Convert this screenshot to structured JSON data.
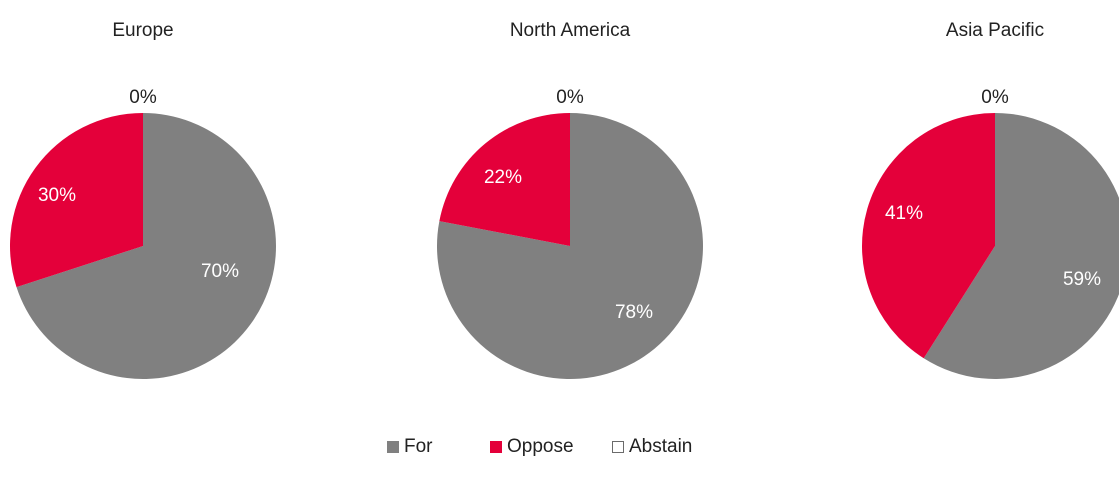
{
  "chart_data": [
    {
      "type": "pie",
      "title": "Europe",
      "categories": [
        "For",
        "Oppose",
        "Abstain"
      ],
      "values": [
        70,
        30,
        0
      ],
      "labels": [
        "70%",
        "30%",
        "0%"
      ]
    },
    {
      "type": "pie",
      "title": "North America",
      "categories": [
        "For",
        "Oppose",
        "Abstain"
      ],
      "values": [
        78,
        22,
        0
      ],
      "labels": [
        "78%",
        "22%",
        "0%"
      ]
    },
    {
      "type": "pie",
      "title": "Asia Pacific",
      "categories": [
        "For",
        "Oppose",
        "Abstain"
      ],
      "values": [
        59,
        41,
        0
      ],
      "labels": [
        "59%",
        "41%",
        "0%"
      ]
    }
  ],
  "legend": {
    "position": "bottom",
    "items": [
      {
        "label": "For",
        "color": "#808080"
      },
      {
        "label": "Oppose",
        "color": "#E4003A"
      },
      {
        "label": "Abstain",
        "color": "#ffffff"
      }
    ]
  },
  "colors": {
    "for": "#808080",
    "oppose": "#E4003A",
    "abstain": "#ffffff",
    "slice_label": "#ffffff",
    "text": "#222222"
  }
}
